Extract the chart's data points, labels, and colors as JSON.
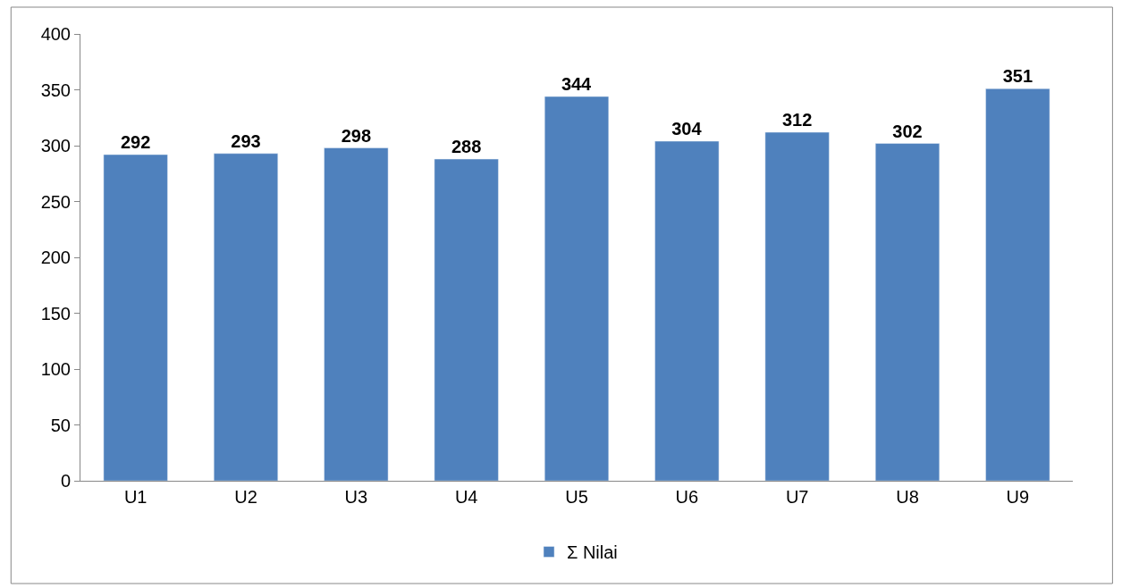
{
  "chart_data": {
    "type": "bar",
    "categories": [
      "U1",
      "U2",
      "U3",
      "U4",
      "U5",
      "U6",
      "U7",
      "U8",
      "U9"
    ],
    "series": [
      {
        "name": "Σ Nilai",
        "color": "#4f81bd",
        "values": [
          292,
          293,
          298,
          288,
          344,
          304,
          312,
          302,
          351
        ]
      }
    ],
    "ylim": [
      0,
      400
    ],
    "yticks": [
      0,
      50,
      100,
      150,
      200,
      250,
      300,
      350,
      400
    ],
    "data_labels": true,
    "legend": "bottom"
  }
}
